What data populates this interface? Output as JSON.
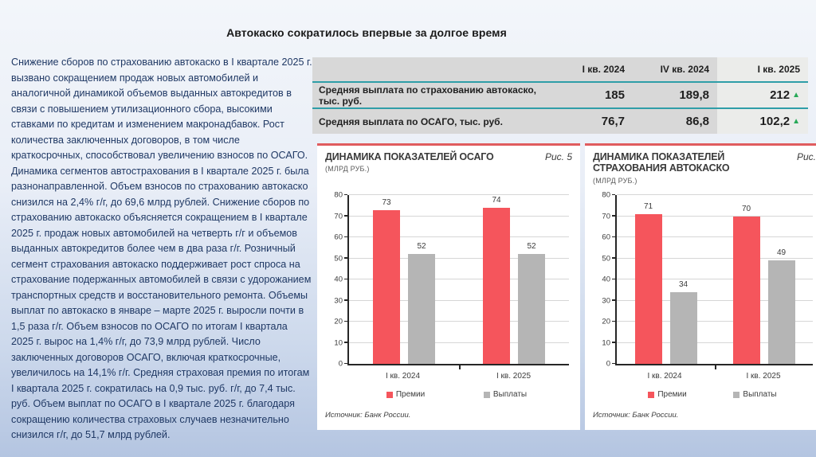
{
  "title": "Автокаско сократилось впервые за долгое время",
  "body_text": "Снижение сборов по страхованию автокаско в I квартале 2025 г. вызвано сокращением продаж новых автомобилей и аналогичной динамикой объемов выданных автокредитов в связи с повышением утилизационного сбора, высокими ставками по кредитам и изменением макронадбавок. Рост количества заключенных договоров, в том числе краткосрочных, способствовал увеличению взносов по ОСАГО. Динамика сегментов автострахования в I квартале 2025 г. была разнонаправленной. Объем взносов по страхованию автокаско снизился на 2,4% г/г, до 69,6 млрд рублей. Снижение сборов по страхованию автокаско объясняется сокращением в I квартале 2025 г. продаж новых автомобилей на четверть г/г и объемов выданных автокредитов более чем в два раза г/г. Розничный сегмент страхования автокаско поддерживает рост спроса на страхование подержанных автомобилей в связи с удорожанием транспортных средств и восстановительного ремонта. Объемы выплат по автокаско в январе – марте 2025 г. выросли почти в 1,5 раза г/г. Объем взносов по ОСАГО по итогам I квартала 2025 г. вырос на 1,4% г/г, до 73,9 млрд рублей. Число заключенных договоров ОСАГО, включая краткосрочные, увеличилось на 14,1% г/г. Средняя страховая премия по итогам I квартала 2025 г. сократилась на 0,9 тыс. руб. г/г, до 7,4 тыс. руб. Объем выплат по ОСАГО в I квартале 2025 г. благодаря сокращению количества страховых случаев незначительно снизился г/г, до 51,7 млрд рублей.",
  "table": {
    "columns": [
      "I кв. 2024",
      "IV кв. 2024",
      "I кв. 2025"
    ],
    "up_arrow": "▲",
    "rows": [
      {
        "label": "Средняя выплата по страхованию автокаско, тыс. руб.",
        "values": [
          "185",
          "189,8",
          "212"
        ],
        "trend": "up"
      },
      {
        "label": "Средняя выплата по ОСАГО, тыс. руб.",
        "values": [
          "76,7",
          "86,8",
          "102,2"
        ],
        "trend": "up"
      }
    ]
  },
  "colors": {
    "premiums_bar": "#f5555c",
    "payouts_bar": "#b5b5b5",
    "table_divider": "#2f9ea8",
    "trend_up": "#27a957",
    "panel_topline": "#e05c5e",
    "body_text": "#1f3864"
  },
  "chart_data": [
    {
      "type": "bar",
      "title": "ДИНАМИКА ПОКАЗАТЕЛЕЙ ОСАГО",
      "subtitle": "(МЛРД РУБ.)",
      "figure_label": "Рис. 5",
      "categories": [
        "I кв. 2024",
        "I кв. 2025"
      ],
      "series": [
        {
          "name": "Премии",
          "color": "#f5555c",
          "values": [
            73,
            74
          ]
        },
        {
          "name": "Выплаты",
          "color": "#b5b5b5",
          "values": [
            52,
            52
          ]
        }
      ],
      "ylim": [
        0,
        80
      ],
      "ytick_step": 10,
      "grid": true,
      "legend_position": "bottom",
      "source": "Источник: Банк России."
    },
    {
      "type": "bar",
      "title": "ДИНАМИКА ПОКАЗАТЕЛЕЙ СТРАХОВАНИЯ АВТОКАСКО",
      "subtitle": "(МЛРД РУБ.)",
      "figure_label": "Рис.",
      "categories": [
        "I кв. 2024",
        "I кв. 2025"
      ],
      "series": [
        {
          "name": "Премии",
          "color": "#f5555c",
          "values": [
            71,
            70
          ]
        },
        {
          "name": "Выплаты",
          "color": "#b5b5b5",
          "values": [
            34,
            49
          ]
        }
      ],
      "ylim": [
        0,
        80
      ],
      "ytick_step": 10,
      "grid": true,
      "legend_position": "bottom",
      "source": "Источник: Банк России."
    }
  ]
}
